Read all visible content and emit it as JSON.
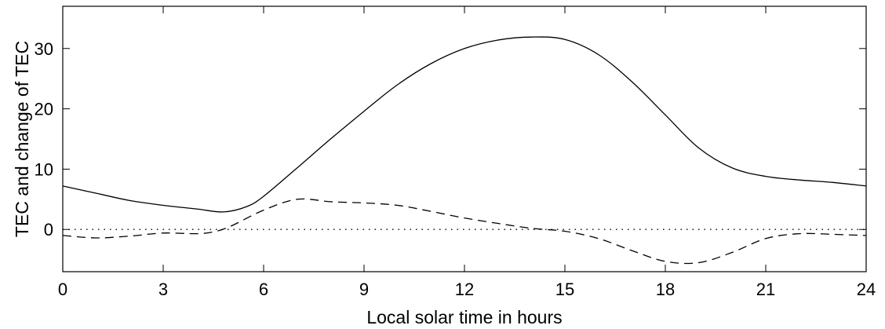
{
  "chart_data": {
    "type": "line",
    "title": "",
    "xlabel": "Local solar time in hours",
    "ylabel": "TEC and change of TEC",
    "xlim": [
      0,
      24
    ],
    "ylim": [
      -7,
      37
    ],
    "xticks": [
      0,
      3,
      6,
      9,
      12,
      15,
      18,
      21,
      24
    ],
    "xtick_labels": [
      "0",
      "3",
      "6",
      "9",
      "12",
      "15",
      "18",
      "21",
      "24"
    ],
    "yticks": [
      0,
      10,
      20,
      30
    ],
    "ytick_labels": [
      "0",
      "10",
      "20",
      "30"
    ],
    "grid": false,
    "series": [
      {
        "style": "solid",
        "color": "#000000",
        "x": [
          0,
          1,
          2,
          3,
          4,
          4.8,
          5.5,
          6,
          7,
          8,
          9,
          10,
          11,
          12,
          13,
          14,
          15,
          16,
          17,
          18,
          19,
          20,
          21,
          22,
          23,
          24
        ],
        "y": [
          7.2,
          6.0,
          4.8,
          4.0,
          3.4,
          2.9,
          3.8,
          5.5,
          10.2,
          15.0,
          19.6,
          24.0,
          27.5,
          30.0,
          31.4,
          31.9,
          31.5,
          29.0,
          24.5,
          19.0,
          13.5,
          10.2,
          8.8,
          8.2,
          7.8,
          7.2
        ]
      },
      {
        "style": "dashed",
        "color": "#000000",
        "x": [
          0,
          1,
          2,
          3,
          4,
          4.5,
          5,
          6,
          7,
          8,
          9,
          10,
          11,
          12,
          13,
          14,
          15,
          16,
          17,
          18,
          19,
          20,
          21,
          22,
          23,
          24
        ],
        "y": [
          -1.0,
          -1.4,
          -1.1,
          -0.6,
          -0.7,
          -0.4,
          0.5,
          3.2,
          5.0,
          4.6,
          4.4,
          4.0,
          3.0,
          1.9,
          1.0,
          0.2,
          -0.3,
          -1.5,
          -3.5,
          -5.3,
          -5.5,
          -3.8,
          -1.5,
          -0.7,
          -0.8,
          -1.0
        ]
      },
      {
        "style": "dotted",
        "color": "#000000",
        "x": [
          0,
          24
        ],
        "y": [
          0,
          0
        ]
      }
    ]
  }
}
